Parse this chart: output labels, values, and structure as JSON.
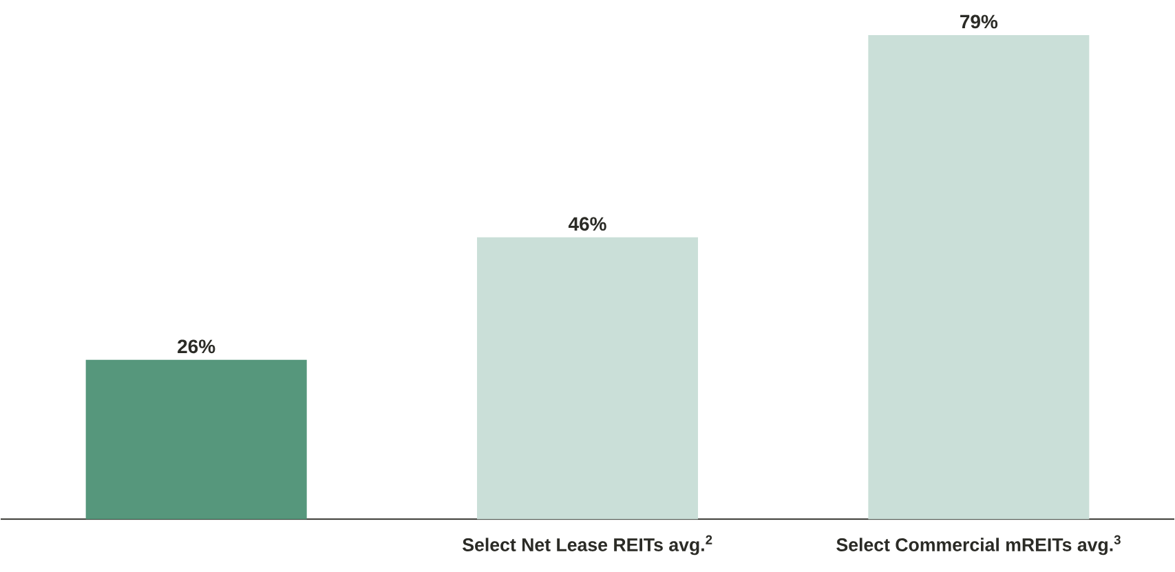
{
  "chart_data": {
    "type": "bar",
    "categories": [
      null,
      "Select Net Lease REITs avg.$^{2}$",
      "Select Commercial mREITs avg.$^{3}$"
    ],
    "values": [
      26,
      46,
      79
    ],
    "colors": [
      "#56977c",
      "#cadfd8",
      "#cadfd8"
    ],
    "value_labels": [
      "26%",
      "46%",
      "79%"
    ]
  }
}
